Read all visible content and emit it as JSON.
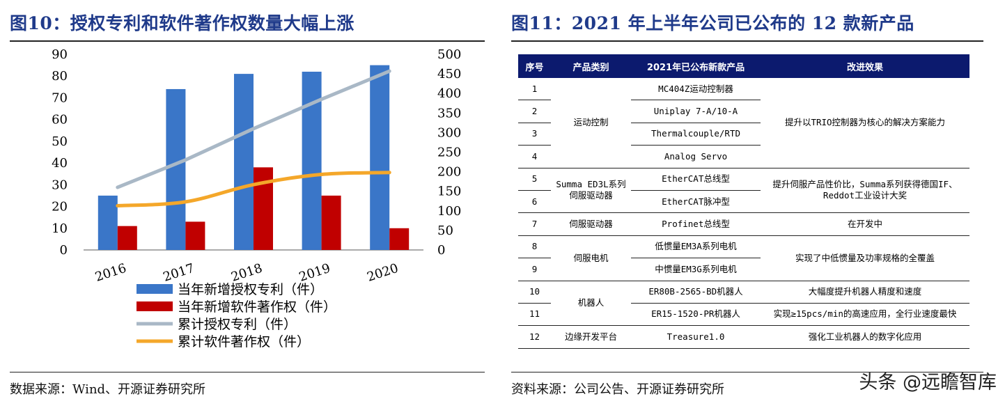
{
  "left_title": "图10：授权专利和软件著作权数量大幅上涨",
  "right_title": "图11：2021 年上半年公司已公布的 12 款新产品",
  "left_source": "数据来源：Wind、开源证券研究所",
  "right_source": "资料来源：公司公告、开源证券研究所",
  "watermark": "头条 @远瞻智库",
  "colors": {
    "bar1": "#3a76c8",
    "bar2": "#c00000",
    "line1": "#a9b8c6",
    "line2": "#f4a72a",
    "header": "#0c1a6e"
  },
  "chart_data": {
    "type": "bar",
    "categories": [
      "2016",
      "2017",
      "2018",
      "2019",
      "2020"
    ],
    "series": [
      {
        "name": "当年新增授权专利（件）",
        "type": "bar",
        "axis": "left",
        "values": [
          25,
          74,
          81,
          82,
          85
        ]
      },
      {
        "name": "当年新增软件著作权（件）",
        "type": "bar",
        "axis": "left",
        "values": [
          11,
          13,
          38,
          25,
          10
        ]
      },
      {
        "name": "累计授权专利（件）",
        "type": "line",
        "axis": "right",
        "values": [
          160,
          230,
          310,
          385,
          457
        ]
      },
      {
        "name": "累计软件著作权（件）",
        "type": "line",
        "axis": "right",
        "values": [
          113,
          123,
          167,
          193,
          198
        ]
      }
    ],
    "left_axis": {
      "ylim": [
        0,
        90
      ],
      "ticks": [
        "0",
        "10",
        "20",
        "30",
        "40",
        "50",
        "60",
        "70",
        "80",
        "90"
      ]
    },
    "right_axis": {
      "ylim": [
        0,
        500
      ],
      "ticks": [
        "0",
        "50",
        "100",
        "150",
        "200",
        "250",
        "300",
        "350",
        "400",
        "450",
        "500"
      ]
    },
    "legend_position": "bottom"
  },
  "table": {
    "headers": [
      "序号",
      "产品类别",
      "2021年已公布新款产品",
      "改进效果"
    ],
    "rows": [
      {
        "no": "1",
        "product": "MC404Z运动控制器"
      },
      {
        "no": "2",
        "product": "Uniplay 7-A/10-A"
      },
      {
        "no": "3",
        "product": "Thermalcouple/RTD"
      },
      {
        "no": "4",
        "product": "Analog Servo"
      },
      {
        "no": "5",
        "product": "EtherCAT总线型"
      },
      {
        "no": "6",
        "product": "EtherCAT脉冲型"
      },
      {
        "no": "7",
        "product": "Profinet总线型"
      },
      {
        "no": "8",
        "product": "低惯量EM3A系列电机"
      },
      {
        "no": "9",
        "product": "中惯量EM3G系列电机"
      },
      {
        "no": "10",
        "product": "ER80B-2565-BD机器人"
      },
      {
        "no": "11",
        "product": "ER15-1520-PR机器人"
      },
      {
        "no": "12",
        "product": "Treasure1.0"
      }
    ],
    "categories": {
      "motion": "运动控制",
      "summa_line1": "Summa ED3L系列",
      "summa_line2": "伺服驱动器",
      "drive": "伺服驱动器",
      "motor": "伺服电机",
      "robot": "机器人",
      "edge": "边缘开发平台"
    },
    "effects": {
      "motion": "提升以TRIO控制器为核心的解决方案能力",
      "summa_line1": "提升伺服产品性价比，Summa系列获得德国IF、",
      "summa_line2": "Reddot工业设计大奖",
      "drive": "在开发中",
      "motor": "实现了中低惯量及功率规格的全覆盖",
      "robot10": "大幅度提升机器人精度和速度",
      "robot11": "实现≥15pcs/min的高速应用，全行业速度最快",
      "edge": "强化工业机器人的数字化应用"
    }
  }
}
